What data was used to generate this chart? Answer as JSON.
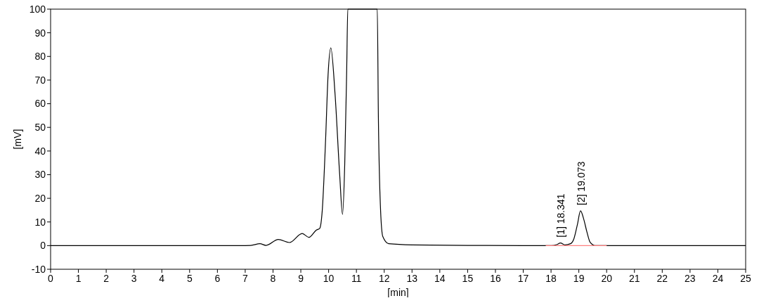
{
  "chart_data": {
    "type": "line",
    "xlabel": "[min]",
    "ylabel": "[mV]",
    "xlim": [
      0,
      25
    ],
    "ylim": [
      -10,
      100
    ],
    "xticks": [
      0,
      1,
      2,
      3,
      4,
      5,
      6,
      7,
      8,
      9,
      10,
      11,
      12,
      13,
      14,
      15,
      16,
      17,
      18,
      19,
      20,
      21,
      22,
      23,
      24,
      25
    ],
    "yticks": [
      -10,
      0,
      10,
      20,
      30,
      40,
      50,
      60,
      70,
      80,
      90,
      100
    ],
    "grid": false,
    "marker": "none",
    "line_style": "solid",
    "series": [
      {
        "color": "#000000",
        "x": [
          0,
          6.8,
          7.2,
          7.53,
          7.75,
          8.19,
          8.59,
          9.05,
          9.29,
          9.56,
          9.68,
          9.77,
          9.89,
          9.98,
          10.08,
          10.23,
          10.4,
          10.5,
          10.58,
          10.65,
          10.69,
          11.75,
          11.79,
          11.87,
          11.95,
          12.16,
          13,
          15,
          17,
          18.02,
          18.2,
          18.34,
          18.5,
          18.7,
          18.82,
          18.95,
          19.06,
          19.18,
          19.29,
          19.41,
          19.59,
          20,
          25
        ],
        "values": [
          0,
          0,
          0.1,
          0.8,
          0.1,
          2.6,
          1.3,
          5.1,
          3.5,
          6.6,
          7.3,
          14.7,
          44.4,
          72.1,
          83.6,
          64.3,
          29.6,
          13.2,
          34.6,
          74.1,
          100,
          100,
          54.3,
          14.7,
          3.8,
          0.8,
          0.3,
          0.1,
          0,
          0,
          0.4,
          1.1,
          0.3,
          0.8,
          2.8,
          9,
          14.7,
          11,
          5.8,
          1.3,
          0,
          0,
          0
        ]
      },
      {
        "type": "line",
        "color": "#ff8080",
        "x": [
          17.81,
          20
        ],
        "values": [
          0,
          0
        ]
      }
    ],
    "annotations": [
      {
        "text": "[1] 18.341",
        "x": 18.341,
        "y": 1.1
      },
      {
        "text": "[2] 19.073",
        "x": 19.073,
        "y": 14.7
      }
    ]
  }
}
